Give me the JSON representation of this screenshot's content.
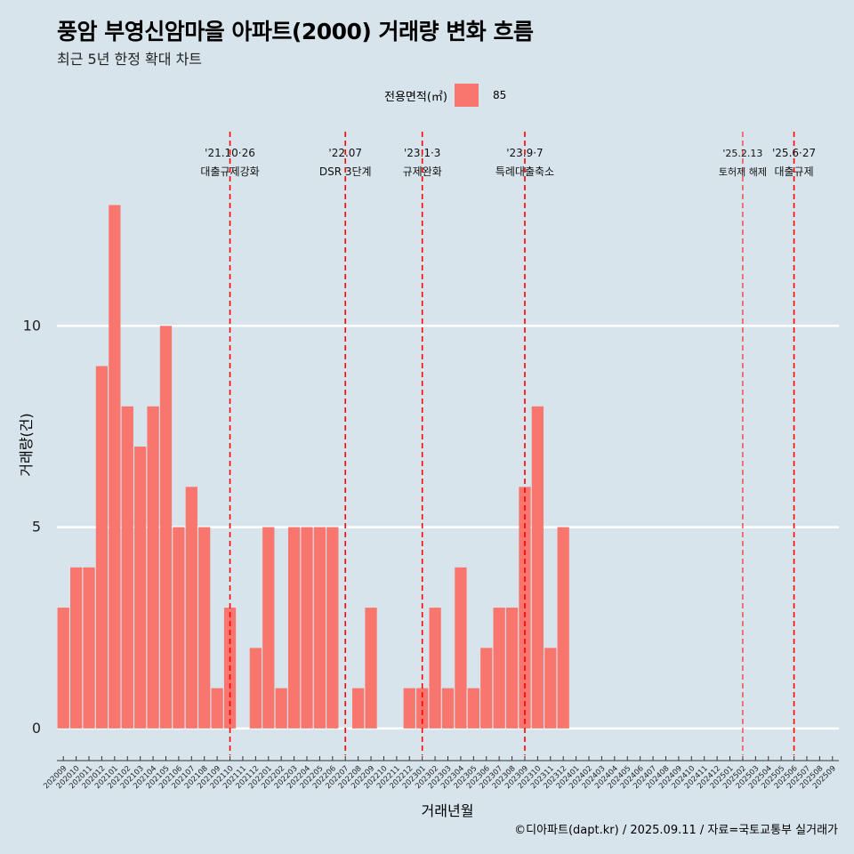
{
  "header": {
    "title": "풍암 부영신암마을 아파트(2000) 거래량 변화 흐름",
    "subtitle": "최근 5년 한정 확대 차트"
  },
  "legend": {
    "title": "전용면적(㎡)",
    "item": "85",
    "color": "#f8766d"
  },
  "caption": "©디아파트(dapt.kr) / 2025.09.11 / 자료=국토교통부 실거래가",
  "chart_data": {
    "type": "bar",
    "xlabel": "거래년월",
    "ylabel": "거래량(건)",
    "ylim": [
      -0.6,
      15.0
    ],
    "yticks": [
      0,
      5,
      10
    ],
    "bar_color": "#f8766d",
    "categories": [
      "202009",
      "202010",
      "202011",
      "202012",
      "202101",
      "202102",
      "202103",
      "202104",
      "202105",
      "202106",
      "202107",
      "202108",
      "202109",
      "202110",
      "202111",
      "202112",
      "202201",
      "202202",
      "202203",
      "202204",
      "202205",
      "202206",
      "202207",
      "202208",
      "202209",
      "202210",
      "202211",
      "202212",
      "202301",
      "202302",
      "202303",
      "202304",
      "202305",
      "202306",
      "202307",
      "202308",
      "202309",
      "202310",
      "202311",
      "202312",
      "202401",
      "202402",
      "202403",
      "202404",
      "202405",
      "202406",
      "202407",
      "202408",
      "202409",
      "202410",
      "202411",
      "202412",
      "202501",
      "202502",
      "202503",
      "202504",
      "202505",
      "202506",
      "202507",
      "202508",
      "202509"
    ],
    "series": [
      {
        "name": "85",
        "values": [
          3,
          4,
          4,
          9,
          13,
          8,
          7,
          8,
          10,
          5,
          6,
          5,
          1,
          3,
          0,
          2,
          5,
          1,
          5,
          5,
          5,
          5,
          0,
          1,
          3,
          0,
          0,
          1,
          1,
          3,
          1,
          4,
          1,
          2,
          3,
          3,
          6,
          8,
          2,
          5,
          0,
          0,
          0,
          0,
          0,
          0,
          0,
          0,
          0,
          0,
          0,
          0,
          0,
          0,
          0,
          0,
          0,
          0,
          0,
          0,
          0
        ]
      }
    ],
    "annotations": [
      {
        "at": "202110",
        "date": "'21.10·26",
        "label": "대출규제강화"
      },
      {
        "at": "202207",
        "date": "'22.07",
        "label": "DSR 3단계"
      },
      {
        "at": "202301",
        "date": "'23.1·3",
        "label": "규제완화"
      },
      {
        "at": "202309",
        "date": "'23.9·7",
        "label": "특례대출축소"
      },
      {
        "at": "202502",
        "date": "'25.2.13",
        "label": "토허제 해제"
      },
      {
        "at": "202506",
        "date": "'25.6·27",
        "label": "대출규제"
      }
    ],
    "grid": true,
    "legend_position": "top"
  }
}
